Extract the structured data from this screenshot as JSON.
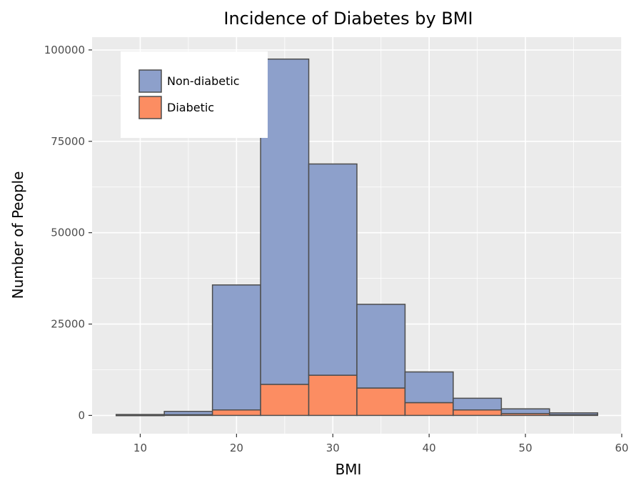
{
  "chart_data": {
    "type": "bar",
    "title": "Incidence of Diabetes by BMI",
    "xlabel": "BMI",
    "ylabel": "Number of People",
    "xlim": [
      5,
      60
    ],
    "ylim": [
      -5000,
      103500
    ],
    "x_ticks": [
      10,
      20,
      30,
      40,
      50,
      60
    ],
    "y_ticks": [
      0,
      25000,
      50000,
      75000,
      100000
    ],
    "bin_width": 5,
    "stacked": true,
    "bins": [
      10,
      15,
      20,
      25,
      30,
      35,
      40,
      45,
      50,
      55
    ],
    "series": [
      {
        "name": "Diabetic",
        "color": "#fc8d62",
        "values": [
          30,
          200,
          1500,
          8500,
          11000,
          7500,
          3500,
          1500,
          500,
          200
        ]
      },
      {
        "name": "Non-diabetic",
        "color": "#8da0cb",
        "values": [
          220,
          900,
          34200,
          89000,
          57800,
          22900,
          8400,
          3200,
          1300,
          500
        ]
      }
    ],
    "legend": {
      "position": "top-left",
      "entries": [
        "Non-diabetic",
        "Diabetic"
      ]
    },
    "panel_background": "#ebebeb",
    "grid": true,
    "bar_outline": "#4d4d4d"
  }
}
